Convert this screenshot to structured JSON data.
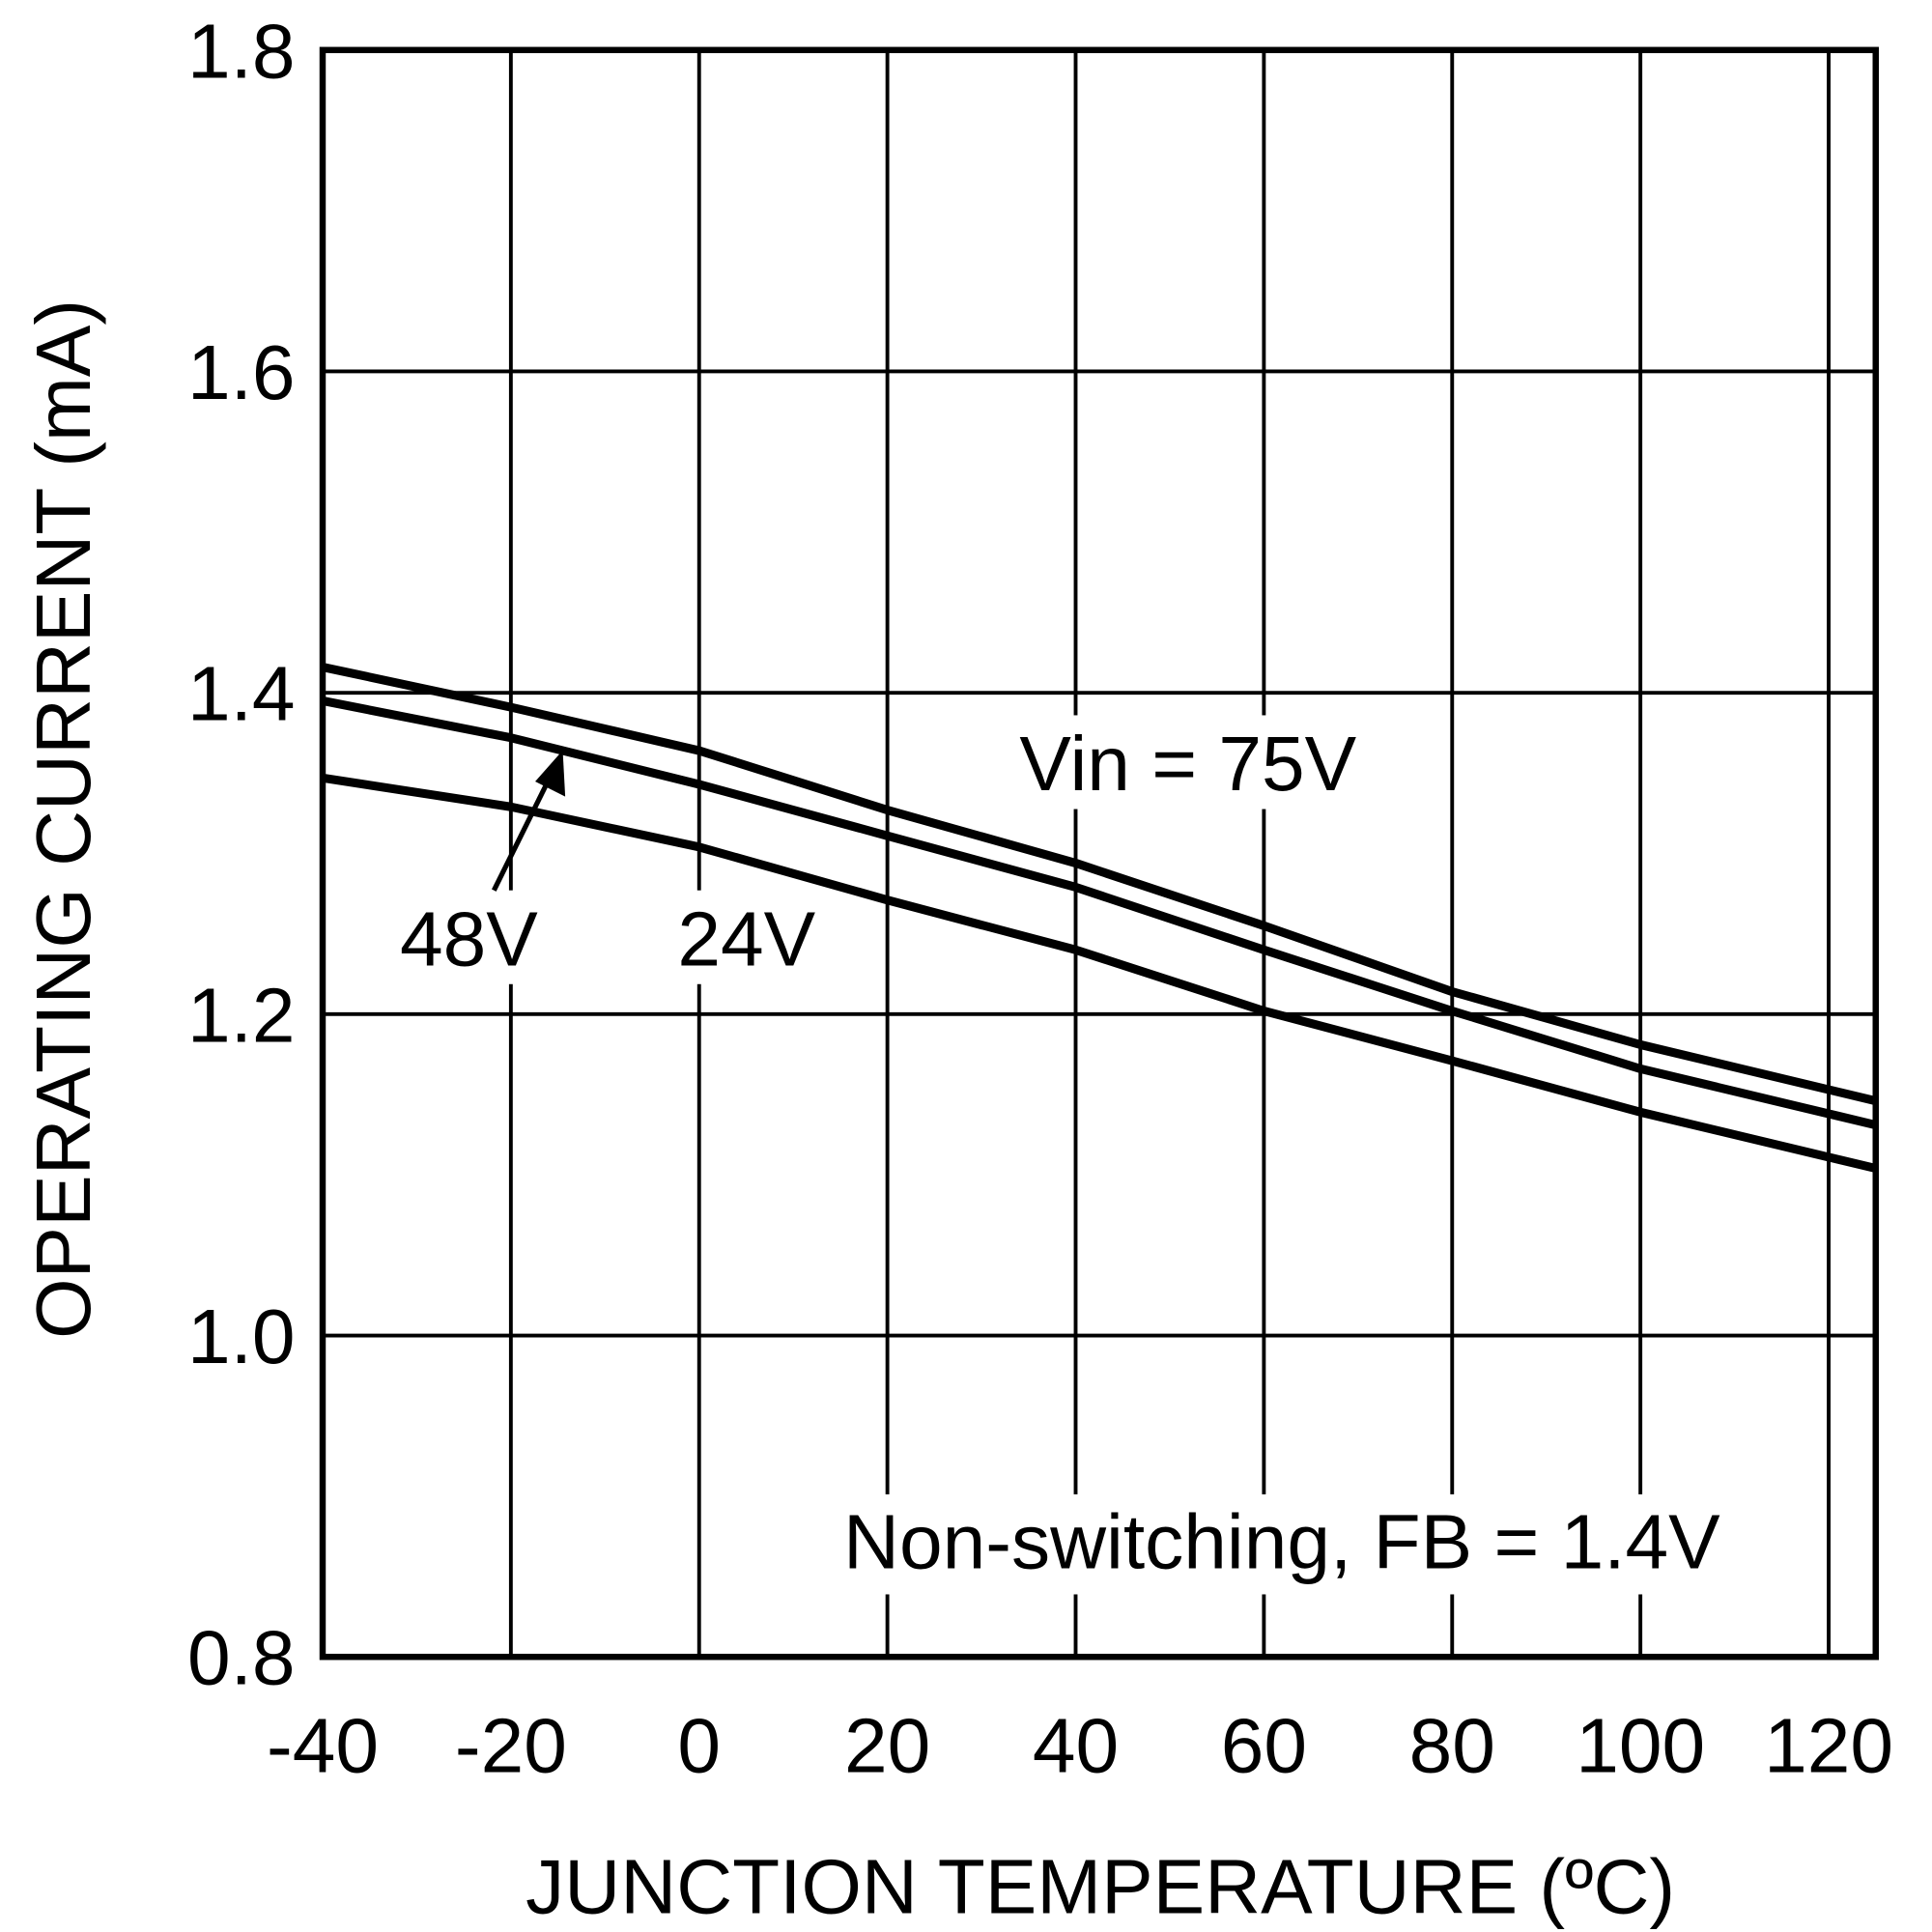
{
  "chart_data": {
    "type": "line",
    "title": "",
    "xlabel": "JUNCTION TEMPERATURE (ºC)",
    "ylabel": "OPERATING CURRENT (mA)",
    "xlim": [
      -40,
      125
    ],
    "ylim": [
      0.8,
      1.8
    ],
    "grid": true,
    "xticks": [
      -40,
      -20,
      0,
      20,
      40,
      60,
      80,
      100,
      120
    ],
    "xtick_labels": [
      "-40",
      "-20",
      "0",
      "20",
      "40",
      "60",
      "80",
      "100",
      "120"
    ],
    "yticks": [
      0.8,
      1.0,
      1.2,
      1.4,
      1.6,
      1.8
    ],
    "ytick_labels": [
      "0.8",
      "1.0",
      "1.2",
      "1.4",
      "1.6",
      "1.8"
    ],
    "x": [
      -40,
      -20,
      0,
      20,
      40,
      60,
      80,
      100,
      125
    ],
    "series": [
      {
        "name": "Vin = 75V",
        "values": [
          1.416,
          1.391,
          1.364,
          1.327,
          1.294,
          1.255,
          1.214,
          1.181,
          1.146
        ]
      },
      {
        "name": "48V",
        "values": [
          1.395,
          1.372,
          1.343,
          1.311,
          1.279,
          1.24,
          1.202,
          1.166,
          1.131
        ]
      },
      {
        "name": "24V",
        "values": [
          1.347,
          1.329,
          1.304,
          1.271,
          1.24,
          1.202,
          1.171,
          1.139,
          1.104
        ]
      }
    ],
    "annotations": [
      "Non-switching, FB = 1.4V"
    ],
    "line_color": "#000000",
    "background": "#ffffff"
  }
}
